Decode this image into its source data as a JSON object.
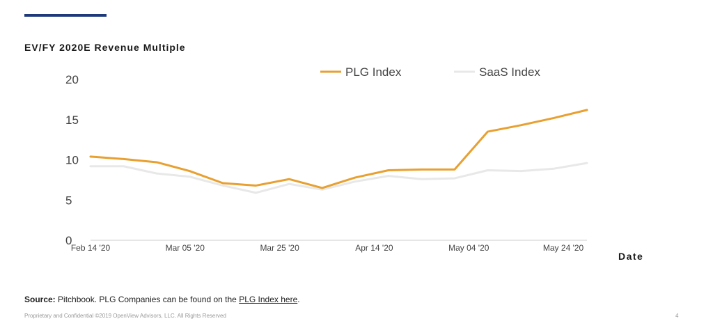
{
  "colors": {
    "accent_bar": "#1f3a7a",
    "plg": "#e8a030",
    "saas": "#e8e8e8",
    "axis": "#cccccc"
  },
  "chart_data": {
    "type": "line",
    "title": "EV/FY 2020E Revenue Multiple",
    "xlabel": "Date",
    "ylabel": "",
    "ylim": [
      0,
      20
    ],
    "yticks": [
      0,
      5,
      10,
      15,
      20
    ],
    "x": [
      0,
      1,
      2,
      3,
      4,
      5,
      6,
      7,
      8,
      9,
      10,
      11,
      12,
      13,
      14,
      15
    ],
    "xlim": [
      0,
      15
    ],
    "x_ticks": [
      {
        "label": "Feb 14 '20",
        "at": 0
      },
      {
        "label": "Mar 05 '20",
        "at": 2.857
      },
      {
        "label": "Mar 25 '20",
        "at": 5.714
      },
      {
        "label": "Apr 14 '20",
        "at": 8.571
      },
      {
        "label": "May 04 '20",
        "at": 11.429
      },
      {
        "label": "May 24 '20",
        "at": 14.286
      }
    ],
    "series": [
      {
        "name": "PLG Index",
        "color": "#e8a030",
        "values": [
          10.4,
          10.1,
          9.7,
          8.6,
          7.1,
          6.8,
          7.6,
          6.5,
          7.8,
          8.7,
          8.8,
          8.8,
          13.5,
          14.3,
          15.2,
          16.2
        ]
      },
      {
        "name": "SaaS Index",
        "color": "#e8e8e8",
        "values": [
          9.2,
          9.2,
          8.3,
          7.9,
          6.8,
          5.9,
          7.0,
          6.3,
          7.3,
          8.0,
          7.6,
          7.7,
          8.7,
          8.6,
          8.9,
          9.6
        ]
      }
    ],
    "legend_position": "top",
    "grid": false
  },
  "source": {
    "label": "Source:",
    "text": " Pitchbook. PLG Companies can be found on the ",
    "link_text": "PLG Index here",
    "end": "."
  },
  "footer": {
    "text": "Proprietary and Confidential ©2019 OpenView Advisors, LLC. All Rights Reserved",
    "page": "4"
  }
}
